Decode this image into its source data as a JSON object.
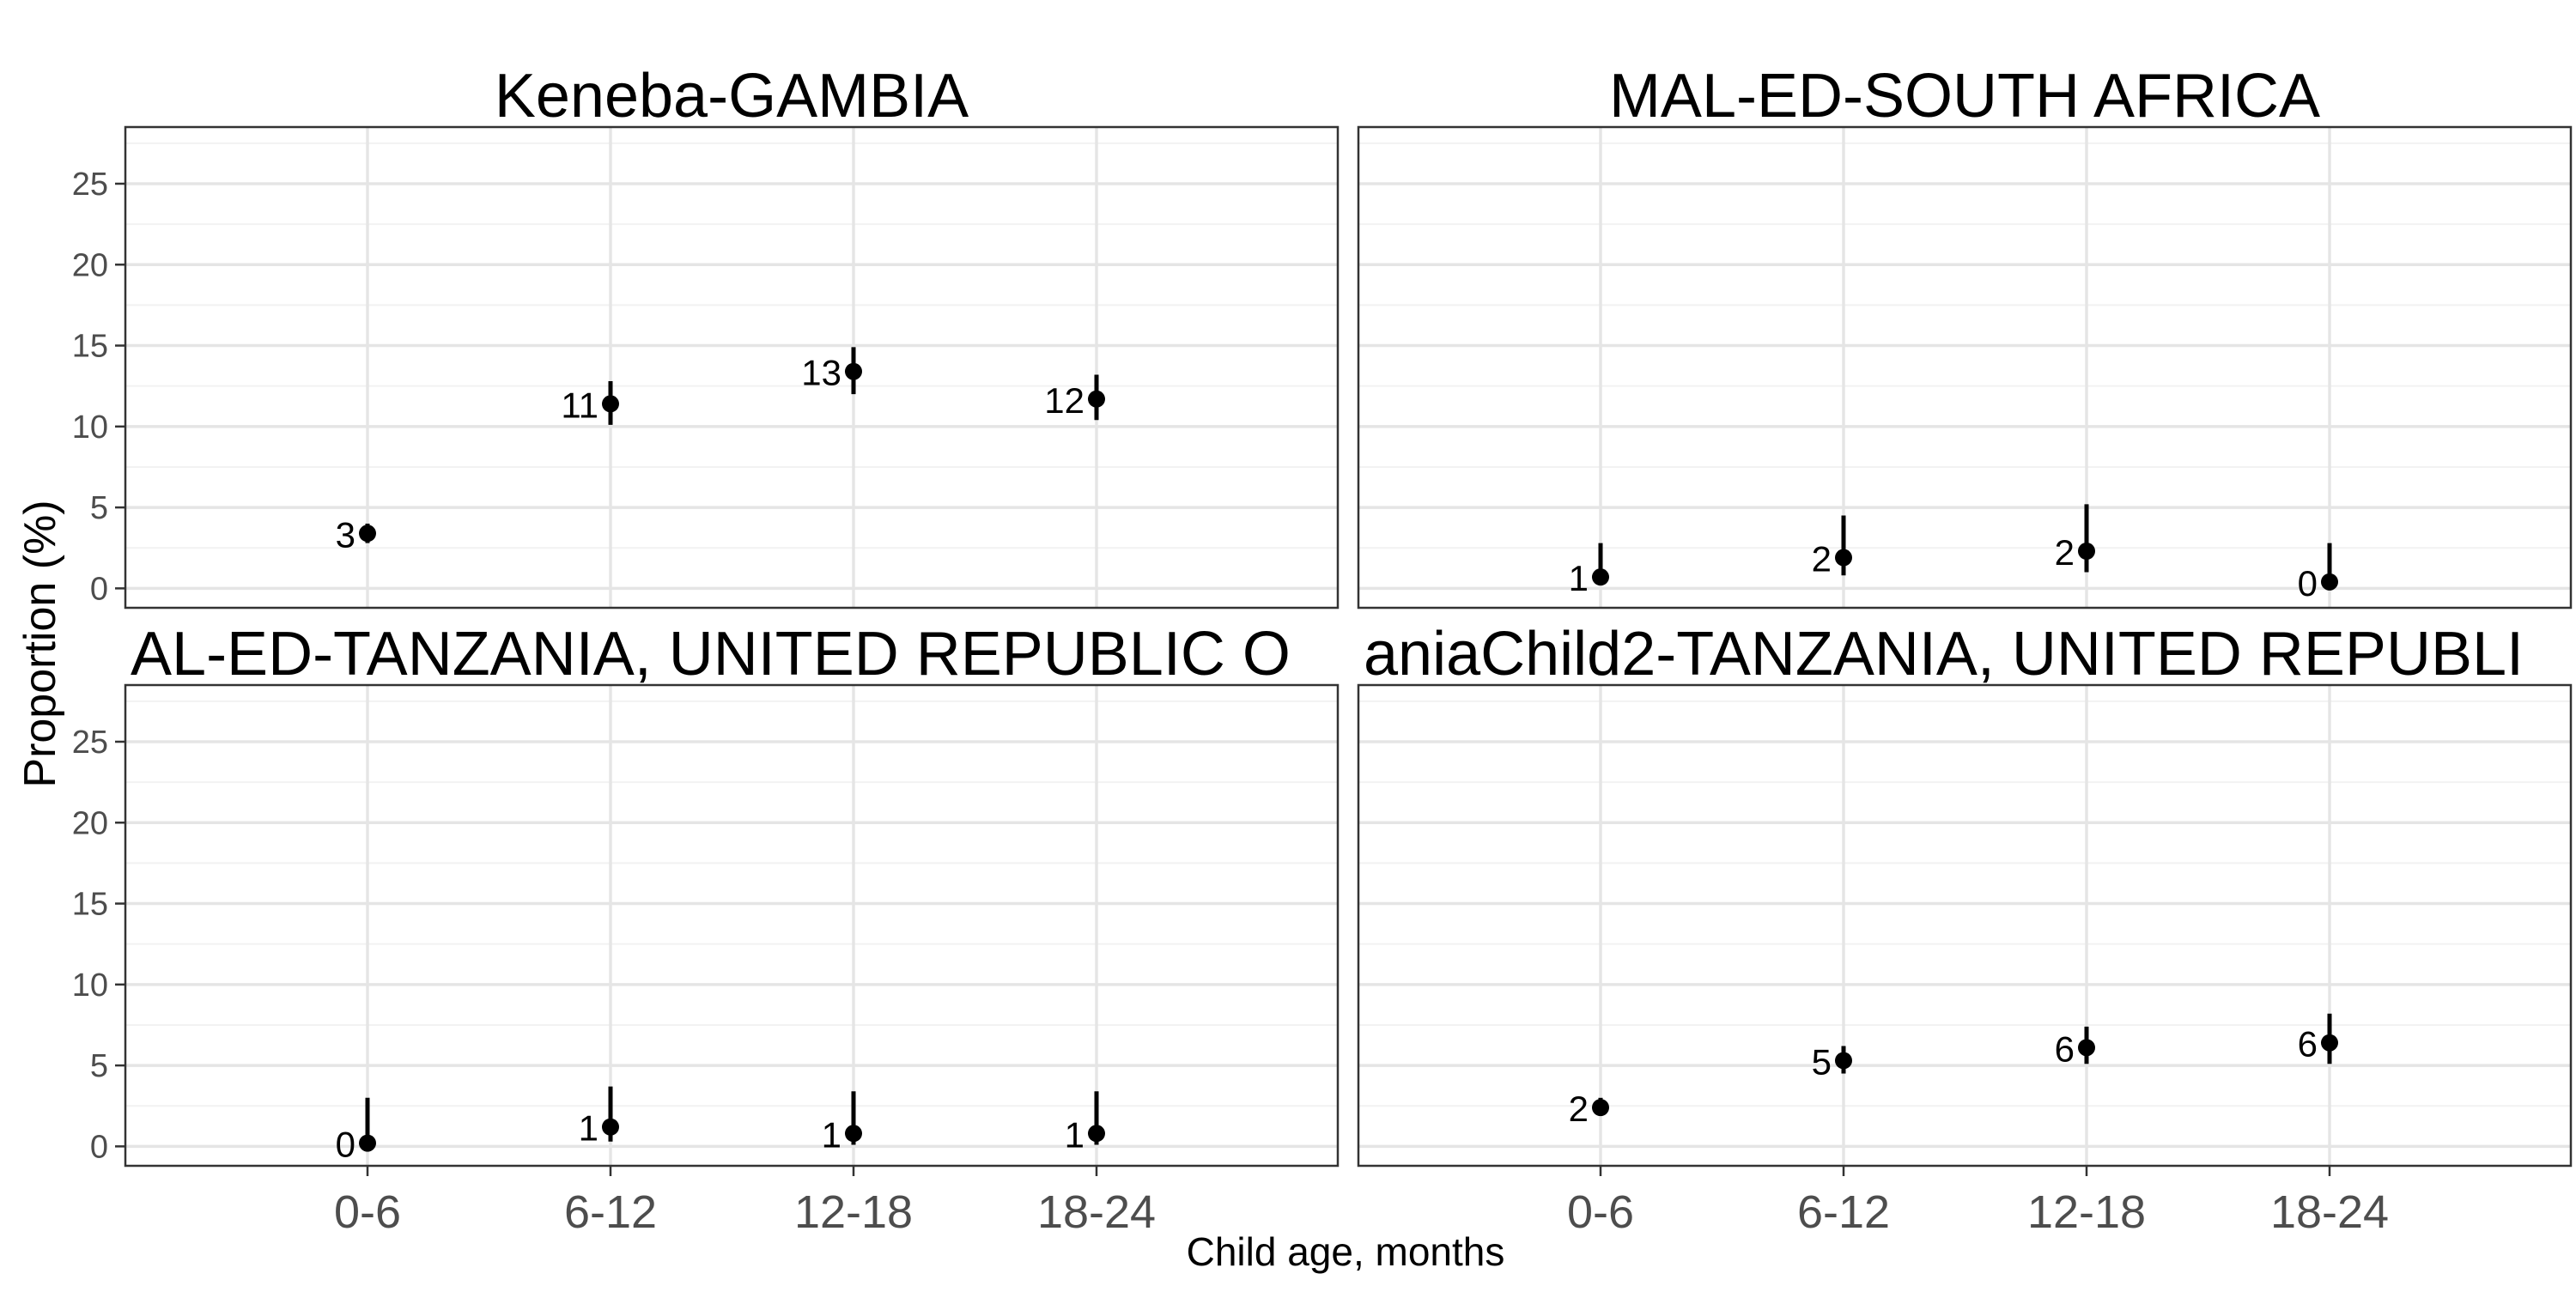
{
  "chart_data": {
    "type": "scatter",
    "ylabel": "Proportion (%)",
    "xlabel": "Child age, months",
    "categories": [
      "0-6",
      "6-12",
      "12-18",
      "18-24"
    ],
    "ylim": [
      -1.2,
      28.5
    ],
    "yticks": [
      0,
      5,
      10,
      15,
      20,
      25
    ],
    "grid": true,
    "colors": {
      "point": "#000000",
      "grid_major": "#e5e5e5",
      "grid_minor": "#f2f2f2",
      "panel_border": "#333333",
      "axis_text": "#4d4d4d",
      "title_text": "#000000"
    },
    "panels": [
      {
        "title": "Keneba-GAMBIA",
        "points": [
          {
            "category": "0-6",
            "y": 3.4,
            "lower": 2.8,
            "upper": 4.0,
            "label": "3"
          },
          {
            "category": "6-12",
            "y": 11.4,
            "lower": 10.1,
            "upper": 12.8,
            "label": "11"
          },
          {
            "category": "12-18",
            "y": 13.4,
            "lower": 12.0,
            "upper": 14.9,
            "label": "13"
          },
          {
            "category": "18-24",
            "y": 11.7,
            "lower": 10.4,
            "upper": 13.2,
            "label": "12"
          }
        ]
      },
      {
        "title": "MAL-ED-SOUTH AFRICA",
        "points": [
          {
            "category": "0-6",
            "y": 0.7,
            "lower": 0.2,
            "upper": 2.8,
            "label": "1"
          },
          {
            "category": "6-12",
            "y": 1.9,
            "lower": 0.8,
            "upper": 4.5,
            "label": "2"
          },
          {
            "category": "12-18",
            "y": 2.3,
            "lower": 1.0,
            "upper": 5.2,
            "label": "2"
          },
          {
            "category": "18-24",
            "y": 0.4,
            "lower": 0.0,
            "upper": 2.8,
            "label": "0"
          }
        ]
      },
      {
        "title": "AL-ED-TANZANIA, UNITED REPUBLIC O",
        "points": [
          {
            "category": "0-6",
            "y": 0.2,
            "lower": 0.0,
            "upper": 3.0,
            "label": "0"
          },
          {
            "category": "6-12",
            "y": 1.2,
            "lower": 0.3,
            "upper": 3.7,
            "label": "1"
          },
          {
            "category": "12-18",
            "y": 0.8,
            "lower": 0.1,
            "upper": 3.4,
            "label": "1"
          },
          {
            "category": "18-24",
            "y": 0.8,
            "lower": 0.1,
            "upper": 3.4,
            "label": "1"
          }
        ]
      },
      {
        "title": "aniaChild2-TANZANIA, UNITED REPUBLI",
        "points": [
          {
            "category": "0-6",
            "y": 2.4,
            "lower": 1.9,
            "upper": 3.0,
            "label": "2"
          },
          {
            "category": "6-12",
            "y": 5.3,
            "lower": 4.5,
            "upper": 6.2,
            "label": "5"
          },
          {
            "category": "12-18",
            "y": 6.1,
            "lower": 5.1,
            "upper": 7.4,
            "label": "6"
          },
          {
            "category": "18-24",
            "y": 6.4,
            "lower": 5.1,
            "upper": 8.2,
            "label": "6"
          }
        ]
      }
    ]
  }
}
